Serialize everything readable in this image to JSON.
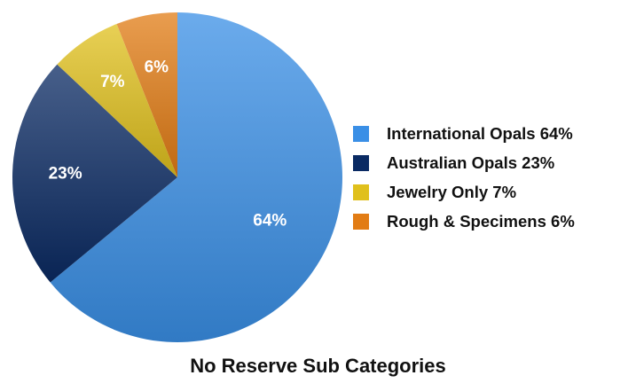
{
  "chart_data": {
    "type": "pie",
    "title": "No Reserve Sub Categories",
    "slices": [
      {
        "label": "International Opals 64%",
        "value": 64,
        "display": "64%",
        "color": "#3a8fe6"
      },
      {
        "label": "Australian Opals 23%",
        "value": 23,
        "display": "23%",
        "color": "#0a2a63"
      },
      {
        "label": "Jewelry Only 7%",
        "value": 7,
        "display": "7%",
        "color": "#e0c01c"
      },
      {
        "label": "Rough & Specimens 6%",
        "value": 6,
        "display": "6%",
        "color": "#e27c14"
      }
    ],
    "legend_position": "right",
    "start_angle": "12 o'clock",
    "direction": "clockwise"
  }
}
